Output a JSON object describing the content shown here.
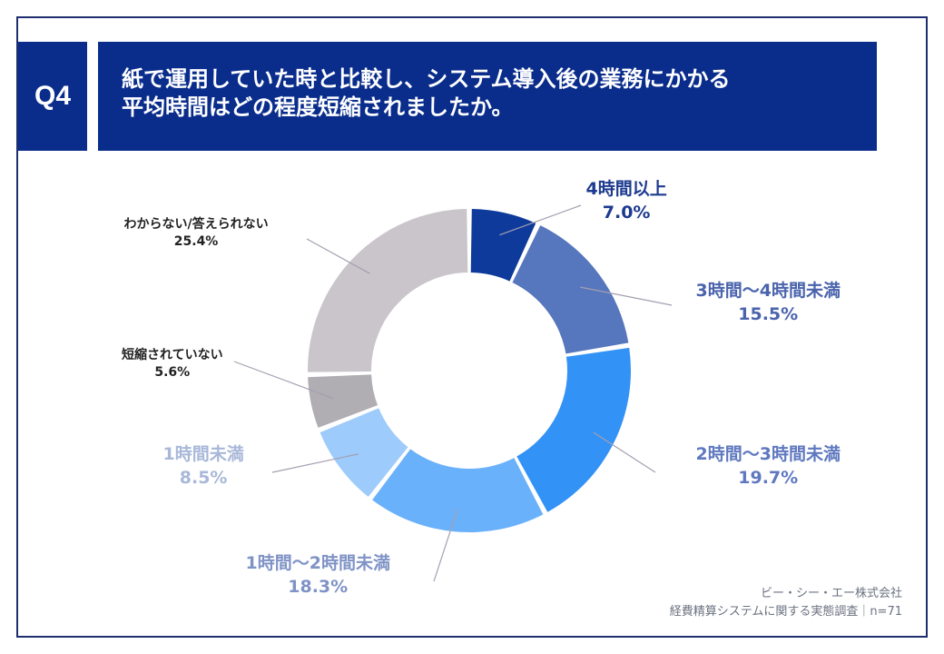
{
  "header": {
    "badge": "Q4",
    "title_line1": "紙で運用していた時と比較し、システム導入後の業務にかかる",
    "title_line2": "平均時間はどの程度短縮されましたか。"
  },
  "source": {
    "company": "ビー・シー・エー株式会社",
    "survey": "経費精算システムに関する実態調査｜n=71"
  },
  "chart_data": {
    "type": "pie",
    "variant": "donut",
    "unit": "%",
    "title": "",
    "slices": [
      {
        "label": "4時間以上",
        "value": 7.0,
        "value_label": "7.0%",
        "color": "#0d3a9b"
      },
      {
        "label": "3時間〜4時間未満",
        "value": 15.5,
        "value_label": "15.5%",
        "color": "#5676bd"
      },
      {
        "label": "2時間〜3時間未満",
        "value": 19.7,
        "value_label": "19.7%",
        "color": "#3392f5"
      },
      {
        "label": "1時間〜2時間未満",
        "value": 18.3,
        "value_label": "18.3%",
        "color": "#6ab1fb"
      },
      {
        "label": "1時間未満",
        "value": 8.5,
        "value_label": "8.5%",
        "color": "#9dcbfb"
      },
      {
        "label": "短縮されていない",
        "value": 5.6,
        "value_label": "5.6%",
        "color": "#b0adb3"
      },
      {
        "label": "わからない/答えられない",
        "value": 25.4,
        "value_label": "25.4%",
        "color": "#c9c5cb"
      }
    ],
    "label_colors": {
      "4時間以上": "#1c3a8f",
      "3時間〜4時間未満": "#4a63ad",
      "2時間〜3時間未満": "#5f78bf",
      "1時間〜2時間未満": "#7f93c6",
      "1時間未満": "#a9b8d9",
      "短縮されていない": "#222222",
      "わからない/答えられない": "#222222"
    }
  }
}
